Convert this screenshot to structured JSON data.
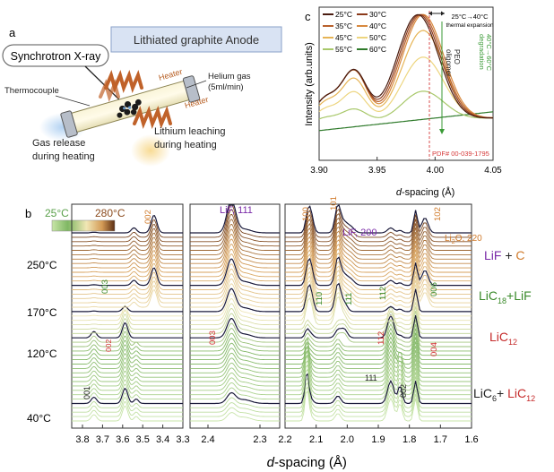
{
  "panel_a": {
    "label": "a",
    "synchrotron": "Synchrotron X-ray",
    "title": "Lithiated graphite Anode",
    "helium_line1": "Helium gas",
    "helium_line2": "(5ml/min)",
    "thermocouple": "Thermocouple",
    "heater_top": "Heater",
    "heater_bottom": "Heater",
    "gas_line1": "Gas release",
    "gas_line2": "during heating",
    "leach_line1": "Lithium leaching",
    "leach_line2": "during heating"
  },
  "panel_c": {
    "label": "c",
    "ylabel": "Intensity (arb.units)",
    "xlabel_italic": "d",
    "xlabel_rest": "-spacing (Å)",
    "x_ticks": [
      "3.90",
      "3.95",
      "4.00",
      "4.05"
    ],
    "legend": [
      "25°C",
      "30°C",
      "35°C",
      "40°C",
      "45°C",
      "50°C",
      "55°C",
      "60°C"
    ],
    "legend_colors": [
      "#4a1c10",
      "#8b3a1a",
      "#b8602c",
      "#d8893e",
      "#e6b455",
      "#edd57e",
      "#a8c86a",
      "#2e7a2a"
    ],
    "expansion_line1": "25°C→40°C",
    "expansion_line2": "thermal expansion",
    "peo_line1": "PEO",
    "peo_line2": "oligomer",
    "degradation_line1": "40°C→60°C",
    "degradation_line2": "degradation",
    "pdf": "PDF# 00-039-1795"
  },
  "panel_b": {
    "label": "b",
    "cb_min": "25°C",
    "cb_max": "280°C",
    "temps": [
      "250°C",
      "170°C",
      "120°C",
      "40°C"
    ],
    "x_ticks_1": [
      "3.8",
      "3.7",
      "3.6",
      "3.5",
      "3.4",
      "3.3"
    ],
    "x_ticks_2": [
      "2.4",
      "2.3"
    ],
    "x_ticks_3": [
      "2.2",
      "2.1",
      "2.0",
      "1.9",
      "1.8",
      "1.7",
      "1.6"
    ],
    "xlabel_italic": "d",
    "xlabel_rest": "-spacing (Å)",
    "peaks": {
      "p002_top": "002",
      "p003_green": "003",
      "p002_red": "002",
      "p001": "001",
      "p003_red": "003",
      "lif111": "LiF, 111",
      "p100": "100",
      "p101": "101",
      "lif200": "LiF, 200",
      "p102": "102",
      "li2o_a": "Li",
      "li2o_sub": "2",
      "li2o_b": "O, 220",
      "p110": "110",
      "p111_green": "111",
      "p112_green": "112",
      "p006": "006",
      "p112_red": "112",
      "p004": "004",
      "p111_black": "111",
      "p002_black": "002"
    },
    "phases": {
      "lif": "LiF",
      "plus1": " + ",
      "c": "C",
      "lic18": "LiC",
      "lic18_sub": "18",
      "plus2": "+",
      "lif2": "LiF",
      "lic12": "LiC",
      "lic12_sub": "12",
      "lic6": "LiC",
      "lic6_sub": "6",
      "plus3": "+ ",
      "lic12b": "LiC",
      "lic12b_sub": "12"
    }
  }
}
